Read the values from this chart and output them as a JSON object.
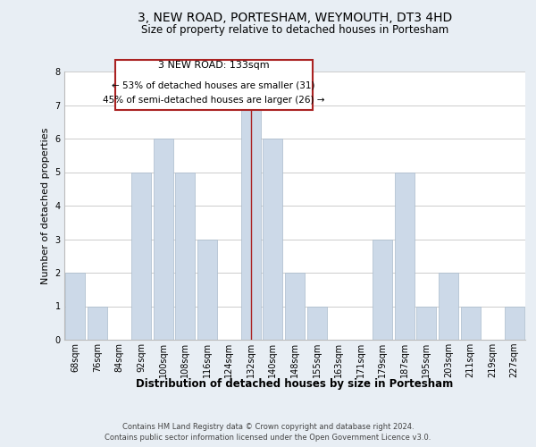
{
  "title": "3, NEW ROAD, PORTESHAM, WEYMOUTH, DT3 4HD",
  "subtitle": "Size of property relative to detached houses in Portesham",
  "xlabel": "Distribution of detached houses by size in Portesham",
  "ylabel": "Number of detached properties",
  "bar_labels": [
    "68sqm",
    "76sqm",
    "84sqm",
    "92sqm",
    "100sqm",
    "108sqm",
    "116sqm",
    "124sqm",
    "132sqm",
    "140sqm",
    "148sqm",
    "155sqm",
    "163sqm",
    "171sqm",
    "179sqm",
    "187sqm",
    "195sqm",
    "203sqm",
    "211sqm",
    "219sqm",
    "227sqm"
  ],
  "bar_values": [
    2,
    1,
    0,
    5,
    6,
    5,
    3,
    0,
    7,
    6,
    2,
    1,
    0,
    0,
    3,
    5,
    1,
    2,
    1,
    0,
    1
  ],
  "bar_color": "#ccd9e8",
  "bar_edge_color": "#aabbcc",
  "highlight_index": 8,
  "highlight_line_color": "#aa2222",
  "ylim": [
    0,
    8
  ],
  "yticks": [
    0,
    1,
    2,
    3,
    4,
    5,
    6,
    7,
    8
  ],
  "annotation_title": "3 NEW ROAD: 133sqm",
  "annotation_line1": "← 53% of detached houses are smaller (31)",
  "annotation_line2": "45% of semi-detached houses are larger (26) →",
  "annotation_box_color": "#aa2222",
  "footer_line1": "Contains HM Land Registry data © Crown copyright and database right 2024.",
  "footer_line2": "Contains public sector information licensed under the Open Government Licence v3.0.",
  "bg_color": "#e8eef4",
  "plot_bg_color": "#ffffff",
  "title_fontsize": 10,
  "subtitle_fontsize": 8.5,
  "tick_fontsize": 7,
  "ylabel_fontsize": 8,
  "xlabel_fontsize": 8.5,
  "footer_fontsize": 6,
  "ann_title_fontsize": 8,
  "ann_body_fontsize": 7.5
}
